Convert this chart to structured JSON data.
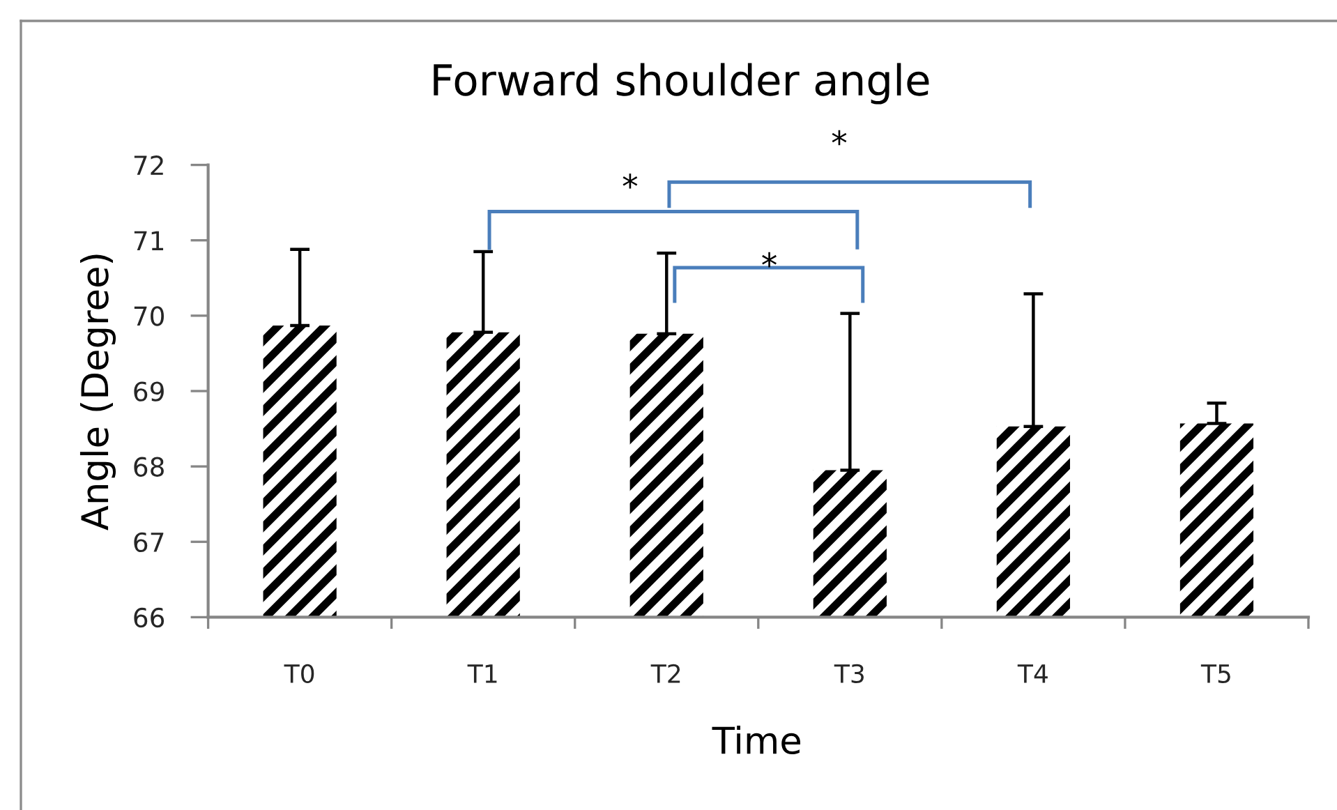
{
  "chart_data": {
    "type": "bar",
    "title": "Forward shoulder angle",
    "xlabel": "Time",
    "ylabel": "Angle (Degree)",
    "categories": [
      "T0",
      "T1",
      "T2",
      "T3",
      "T4",
      "T5"
    ],
    "values": [
      69.87,
      69.78,
      69.76,
      67.95,
      68.53,
      68.57
    ],
    "errors": [
      [
        69.87,
        70.88
      ],
      [
        69.78,
        70.85
      ],
      [
        69.76,
        70.83
      ],
      [
        67.95,
        70.03
      ],
      [
        68.53,
        70.29
      ],
      [
        68.57,
        68.84
      ]
    ],
    "color": "#000000",
    "ylim": [
      66,
      72
    ],
    "yticks": [
      66,
      67,
      68,
      69,
      70,
      71,
      72
    ],
    "annotations": [
      "*",
      "*",
      "*"
    ]
  }
}
